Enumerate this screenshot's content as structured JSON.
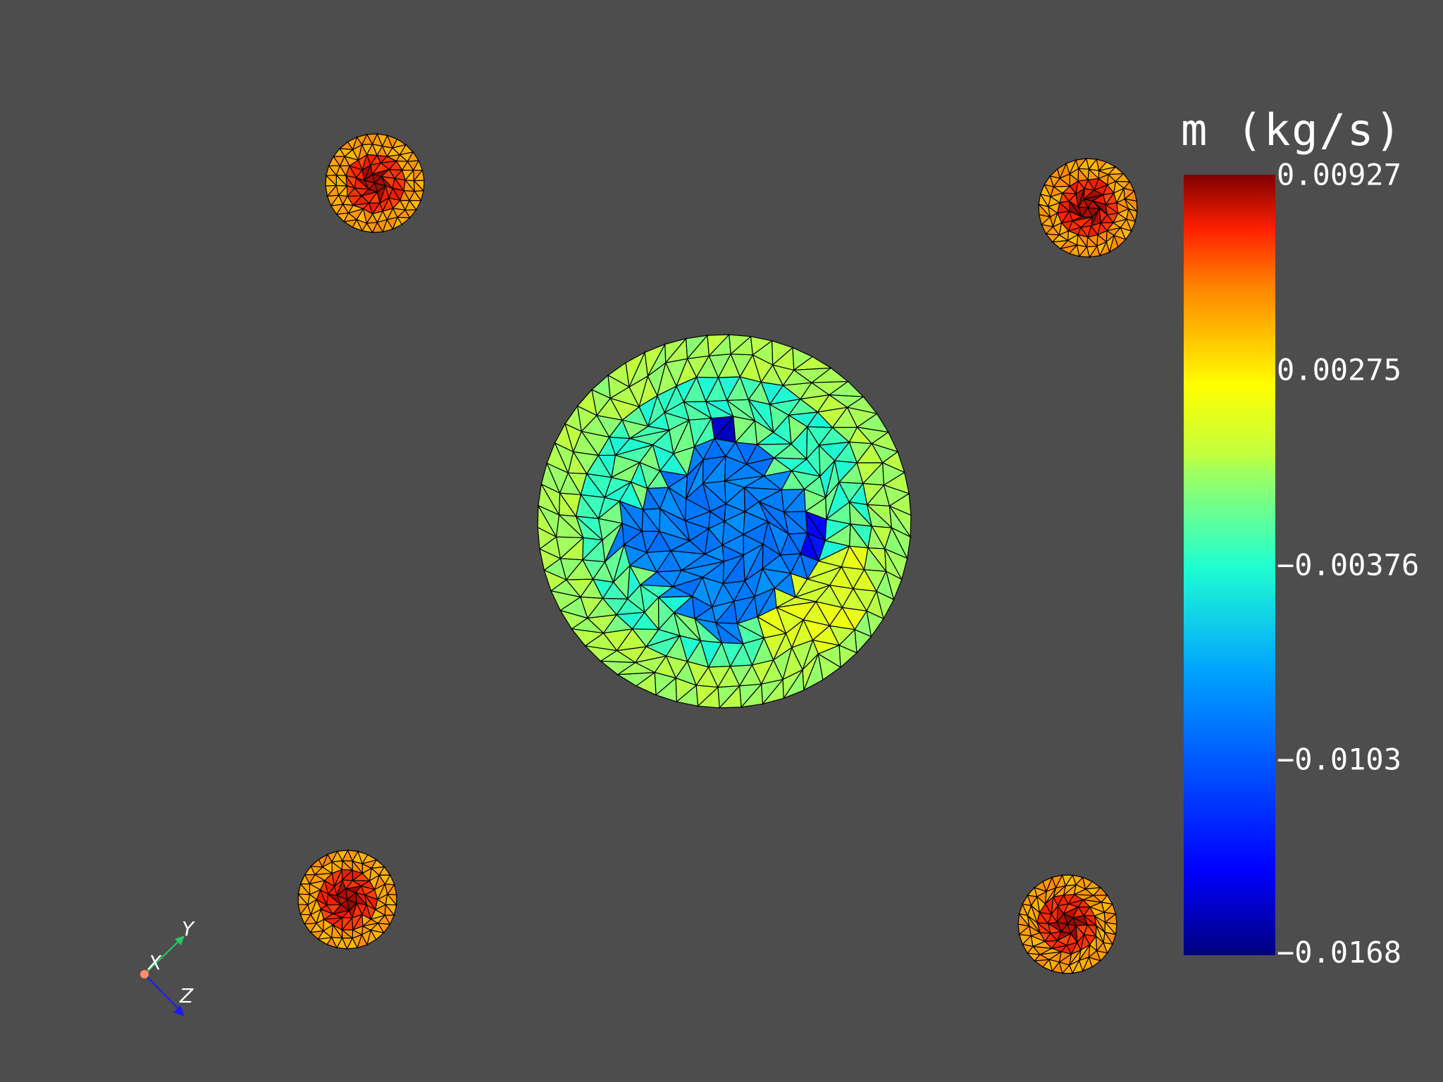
{
  "colorbar": {
    "title": "m (kg/s)",
    "ticks": [
      "0.00927",
      "0.00275",
      "−0.00376",
      "−0.0103",
      "−0.0168"
    ],
    "max": 0.00927,
    "min": -0.0168,
    "colormap": [
      "#7f0000",
      "#ff0000",
      "#ff8000",
      "#ffff00",
      "#80ff80",
      "#00ffff",
      "#0080ff",
      "#0000ff",
      "#00007f"
    ]
  },
  "axes": {
    "x_label": "X",
    "y_label": "Y",
    "z_label": "Z",
    "x_color": "#ff8c69",
    "y_color": "#22cc66",
    "z_color": "#1a1aff"
  },
  "colors": {
    "background": "#4d4d4d",
    "mesh_edge": "#000000"
  }
}
